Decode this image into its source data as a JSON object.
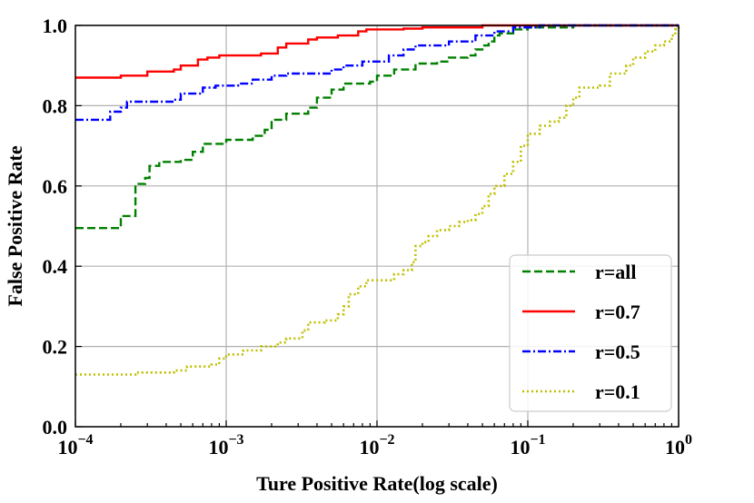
{
  "chart_data": {
    "type": "line",
    "title": "",
    "xlabel": "Ture Positive Rate(log scale)",
    "ylabel": "False Positive Rate",
    "xscale": "log",
    "xlim": [
      0.0001,
      1
    ],
    "ylim": [
      0.0,
      1.0
    ],
    "grid": true,
    "legend_position": "lower-right",
    "x_ticks": [
      {
        "base": "10",
        "exp": "−4",
        "value": 0.0001
      },
      {
        "base": "10",
        "exp": "−3",
        "value": 0.001
      },
      {
        "base": "10",
        "exp": "−2",
        "value": 0.01
      },
      {
        "base": "10",
        "exp": "−1",
        "value": 0.1
      },
      {
        "base": "10",
        "exp": "0",
        "value": 1
      }
    ],
    "y_ticks": [
      "0.0",
      "0.2",
      "0.4",
      "0.6",
      "0.8",
      "1.0"
    ],
    "series": [
      {
        "name": "r=all",
        "color": "#008000",
        "dash": "dashed",
        "points": [
          [
            0.0001,
            0.495
          ],
          [
            0.0002,
            0.495
          ],
          [
            0.0002,
            0.525
          ],
          [
            0.00025,
            0.525
          ],
          [
            0.00025,
            0.605
          ],
          [
            0.00029,
            0.62
          ],
          [
            0.00031,
            0.65
          ],
          [
            0.00036,
            0.66
          ],
          [
            0.0005,
            0.665
          ],
          [
            0.0006,
            0.685
          ],
          [
            0.0007,
            0.705
          ],
          [
            0.001,
            0.715
          ],
          [
            0.0015,
            0.725
          ],
          [
            0.0018,
            0.74
          ],
          [
            0.002,
            0.765
          ],
          [
            0.0025,
            0.78
          ],
          [
            0.0035,
            0.795
          ],
          [
            0.004,
            0.82
          ],
          [
            0.005,
            0.84
          ],
          [
            0.006,
            0.855
          ],
          [
            0.009,
            0.86
          ],
          [
            0.01,
            0.875
          ],
          [
            0.013,
            0.89
          ],
          [
            0.018,
            0.905
          ],
          [
            0.025,
            0.91
          ],
          [
            0.03,
            0.92
          ],
          [
            0.04,
            0.925
          ],
          [
            0.045,
            0.94
          ],
          [
            0.05,
            0.95
          ],
          [
            0.055,
            0.96
          ],
          [
            0.06,
            0.975
          ],
          [
            0.065,
            0.98
          ],
          [
            0.08,
            0.99
          ],
          [
            0.1,
            0.995
          ],
          [
            0.2,
            1.0
          ],
          [
            1,
            1.0
          ]
        ]
      },
      {
        "name": "r=0.7",
        "color": "#ff0000",
        "dash": "solid",
        "points": [
          [
            0.0001,
            0.87
          ],
          [
            0.0002,
            0.875
          ],
          [
            0.0003,
            0.885
          ],
          [
            0.00045,
            0.89
          ],
          [
            0.0005,
            0.9
          ],
          [
            0.00065,
            0.915
          ],
          [
            0.00075,
            0.92
          ],
          [
            0.0009,
            0.925
          ],
          [
            0.0017,
            0.93
          ],
          [
            0.0022,
            0.945
          ],
          [
            0.0025,
            0.955
          ],
          [
            0.0035,
            0.965
          ],
          [
            0.004,
            0.97
          ],
          [
            0.0055,
            0.975
          ],
          [
            0.0075,
            0.985
          ],
          [
            0.0085,
            0.99
          ],
          [
            0.015,
            0.992
          ],
          [
            0.02,
            0.995
          ],
          [
            0.05,
            1.0
          ],
          [
            1,
            1.0
          ]
        ]
      },
      {
        "name": "r=0.5",
        "color": "#0000ff",
        "dash": "dashdot",
        "points": [
          [
            0.0001,
            0.765
          ],
          [
            0.00016,
            0.765
          ],
          [
            0.00017,
            0.785
          ],
          [
            0.0002,
            0.795
          ],
          [
            0.00022,
            0.81
          ],
          [
            0.00045,
            0.815
          ],
          [
            0.0005,
            0.83
          ],
          [
            0.0007,
            0.845
          ],
          [
            0.00085,
            0.85
          ],
          [
            0.0012,
            0.855
          ],
          [
            0.0015,
            0.865
          ],
          [
            0.002,
            0.875
          ],
          [
            0.0025,
            0.88
          ],
          [
            0.005,
            0.89
          ],
          [
            0.006,
            0.9
          ],
          [
            0.008,
            0.91
          ],
          [
            0.012,
            0.925
          ],
          [
            0.015,
            0.94
          ],
          [
            0.018,
            0.95
          ],
          [
            0.03,
            0.96
          ],
          [
            0.045,
            0.975
          ],
          [
            0.06,
            0.985
          ],
          [
            0.08,
            0.995
          ],
          [
            0.12,
            1.0
          ],
          [
            1,
            1.0
          ]
        ]
      },
      {
        "name": "r=0.1",
        "color": "#bfbf00",
        "dash": "dotted",
        "points": [
          [
            0.0001,
            0.13
          ],
          [
            0.00023,
            0.13
          ],
          [
            0.00025,
            0.135
          ],
          [
            0.00045,
            0.14
          ],
          [
            0.00055,
            0.15
          ],
          [
            0.0008,
            0.155
          ],
          [
            0.0009,
            0.17
          ],
          [
            0.001,
            0.18
          ],
          [
            0.0013,
            0.19
          ],
          [
            0.0017,
            0.2
          ],
          [
            0.0022,
            0.21
          ],
          [
            0.0025,
            0.22
          ],
          [
            0.0032,
            0.24
          ],
          [
            0.0035,
            0.26
          ],
          [
            0.0045,
            0.265
          ],
          [
            0.0055,
            0.28
          ],
          [
            0.006,
            0.3
          ],
          [
            0.0065,
            0.33
          ],
          [
            0.0075,
            0.35
          ],
          [
            0.0085,
            0.365
          ],
          [
            0.013,
            0.38
          ],
          [
            0.015,
            0.39
          ],
          [
            0.017,
            0.41
          ],
          [
            0.018,
            0.45
          ],
          [
            0.02,
            0.46
          ],
          [
            0.022,
            0.475
          ],
          [
            0.025,
            0.49
          ],
          [
            0.03,
            0.5
          ],
          [
            0.035,
            0.51
          ],
          [
            0.04,
            0.515
          ],
          [
            0.045,
            0.53
          ],
          [
            0.05,
            0.55
          ],
          [
            0.055,
            0.58
          ],
          [
            0.06,
            0.6
          ],
          [
            0.07,
            0.63
          ],
          [
            0.08,
            0.66
          ],
          [
            0.09,
            0.7
          ],
          [
            0.1,
            0.73
          ],
          [
            0.12,
            0.75
          ],
          [
            0.14,
            0.76
          ],
          [
            0.16,
            0.77
          ],
          [
            0.18,
            0.8
          ],
          [
            0.2,
            0.82
          ],
          [
            0.22,
            0.845
          ],
          [
            0.3,
            0.85
          ],
          [
            0.35,
            0.88
          ],
          [
            0.45,
            0.9
          ],
          [
            0.5,
            0.92
          ],
          [
            0.6,
            0.935
          ],
          [
            0.7,
            0.95
          ],
          [
            0.8,
            0.96
          ],
          [
            0.9,
            0.975
          ],
          [
            0.95,
            0.99
          ],
          [
            1,
            1.0
          ]
        ]
      }
    ]
  }
}
